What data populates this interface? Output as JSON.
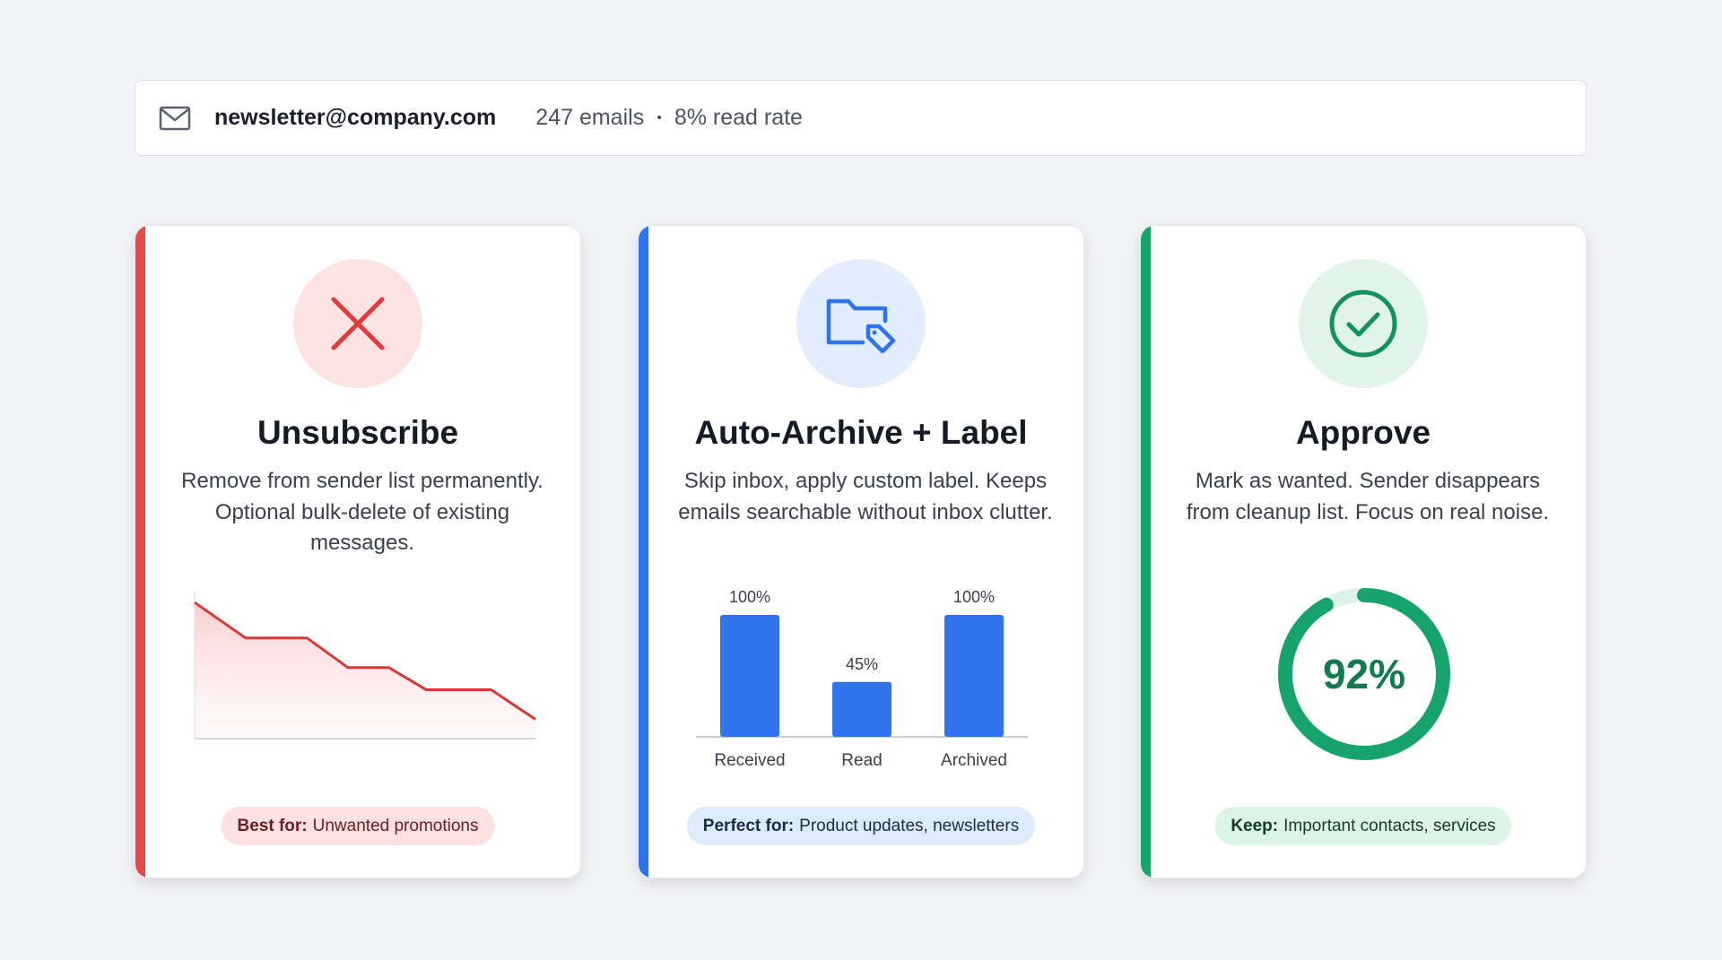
{
  "header": {
    "icon": "mail-icon",
    "sender": "newsletter@company.com",
    "email_count": "247 emails",
    "separator": "•",
    "read_rate": "8% read rate"
  },
  "cards": [
    {
      "icon": "x-icon",
      "title": "Unsubscribe",
      "description": "Remove from sender list permanently. Optional bulk-delete of existing messages.",
      "pill_label": "Best for:",
      "pill_text": "Unwanted promotions",
      "accent": "#e5484d"
    },
    {
      "icon": "folder-tag-icon",
      "title": "Auto-Archive + Label",
      "description": "Skip inbox, apply custom label. Keeps emails searchable without inbox clutter.",
      "pill_label": "Perfect for:",
      "pill_text": "Product updates, newsletters",
      "accent": "#2f74eb"
    },
    {
      "icon": "check-circle-icon",
      "title": "Approve",
      "description": "Mark as wanted. Sender disappears from cleanup list. Focus on real noise.",
      "pill_label": "Keep:",
      "pill_text": "Important contacts, services",
      "accent": "#16a36c"
    }
  ],
  "chart_data": [
    {
      "type": "area",
      "x": [
        0,
        15,
        33,
        45,
        57,
        68,
        87,
        100
      ],
      "values": [
        92,
        68,
        68,
        48,
        48,
        33,
        33,
        13
      ],
      "ylim": [
        0,
        100
      ],
      "grid": false,
      "color": "#d93838"
    },
    {
      "type": "bar",
      "categories": [
        "Received",
        "Read",
        "Archived"
      ],
      "values": [
        100,
        45,
        100
      ],
      "labels": [
        "100%",
        "45%",
        "100%"
      ],
      "ylim": [
        0,
        100
      ],
      "color": "#2f74eb"
    },
    {
      "type": "pie",
      "values": [
        92
      ],
      "label": "92%",
      "color": "#16a36c",
      "track_color": "#dff3ea"
    }
  ]
}
